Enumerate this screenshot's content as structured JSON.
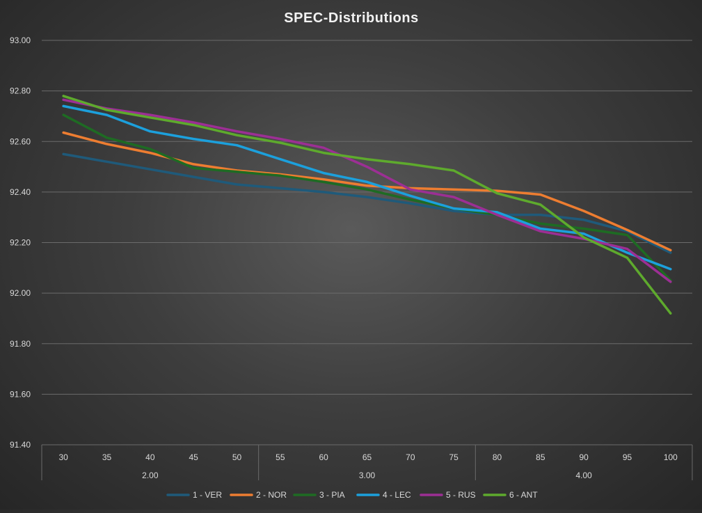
{
  "chart_data": {
    "type": "line",
    "title": "SPEC-Distributions",
    "xlabel": "",
    "ylabel": "",
    "ylim": [
      91.4,
      93.0
    ],
    "yticks": [
      "91.40",
      "91.60",
      "91.80",
      "92.00",
      "92.20",
      "92.40",
      "92.60",
      "92.80",
      "93.00"
    ],
    "categories": [
      "30",
      "35",
      "40",
      "45",
      "50",
      "55",
      "60",
      "65",
      "70",
      "75",
      "80",
      "85",
      "90",
      "95",
      "100"
    ],
    "category_groups": [
      {
        "label": "2.00",
        "span": 5
      },
      {
        "label": "3.00",
        "span": 5
      },
      {
        "label": "4.00",
        "span": 5
      }
    ],
    "grid": true,
    "legend_position": "bottom",
    "series": [
      {
        "name": "1 - VER",
        "color": "#1f5a7a",
        "values": [
          92.55,
          92.52,
          92.49,
          92.46,
          92.43,
          92.415,
          92.4,
          92.38,
          92.355,
          92.325,
          92.31,
          92.31,
          92.29,
          92.245,
          92.16
        ]
      },
      {
        "name": "2 - NOR",
        "color": "#ed7d31",
        "values": [
          92.635,
          92.59,
          92.555,
          92.51,
          92.485,
          92.47,
          92.45,
          92.425,
          92.415,
          92.41,
          92.405,
          92.39,
          92.325,
          92.25,
          92.17
        ]
      },
      {
        "name": "3 - PIA",
        "color": "#1e6b23",
        "values": [
          92.705,
          92.615,
          92.57,
          92.495,
          92.48,
          92.465,
          92.44,
          92.41,
          92.37,
          92.335,
          92.31,
          92.275,
          92.255,
          92.23,
          92.05
        ]
      },
      {
        "name": "4 - LEC",
        "color": "#1ca0dc",
        "values": [
          92.74,
          92.705,
          92.64,
          92.61,
          92.585,
          92.53,
          92.475,
          92.44,
          92.385,
          92.335,
          92.32,
          92.255,
          92.235,
          92.16,
          92.095
        ]
      },
      {
        "name": "5 - RUS",
        "color": "#9c2f94",
        "values": [
          92.765,
          92.73,
          92.705,
          92.675,
          92.64,
          92.61,
          92.575,
          92.5,
          92.41,
          92.38,
          92.31,
          92.245,
          92.215,
          92.175,
          92.045
        ]
      },
      {
        "name": "6 - ANT",
        "color": "#5eaa2d",
        "values": [
          92.78,
          92.725,
          92.695,
          92.665,
          92.625,
          92.595,
          92.555,
          92.53,
          92.51,
          92.485,
          92.395,
          92.35,
          92.22,
          92.14,
          91.92
        ]
      }
    ]
  }
}
